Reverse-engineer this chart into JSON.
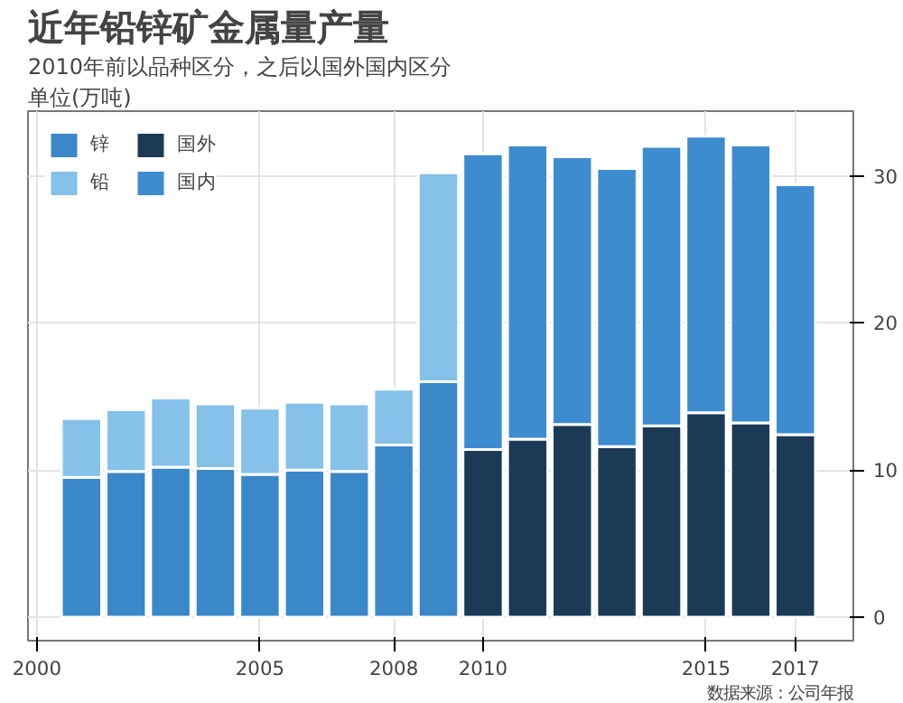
{
  "chart_data": {
    "type": "bar",
    "stacked": true,
    "title": "近年铅锌矿金属量产量",
    "subtitle": "2010年前以品种区分，之后以国外国内区分",
    "ylabel": "单位(万吨)",
    "x": [
      2001,
      2002,
      2003,
      2004,
      2005,
      2006,
      2007,
      2008,
      2009,
      2010,
      2011,
      2012,
      2013,
      2014,
      2015,
      2016,
      2017
    ],
    "series": [
      {
        "name": "锌",
        "color": "#3a88c8",
        "values": [
          9.5,
          9.9,
          10.2,
          10.1,
          9.7,
          10.0,
          9.9,
          11.7,
          16.0,
          null,
          null,
          null,
          null,
          null,
          null,
          null,
          null
        ]
      },
      {
        "name": "铅",
        "color": "#85c1e9",
        "values": [
          4.0,
          4.2,
          4.7,
          4.4,
          4.5,
          4.6,
          4.6,
          3.8,
          14.2,
          null,
          null,
          null,
          null,
          null,
          null,
          null,
          null
        ]
      },
      {
        "name": "国外",
        "color": "#1b3a56",
        "values": [
          null,
          null,
          null,
          null,
          null,
          null,
          null,
          null,
          null,
          11.4,
          12.1,
          13.1,
          11.6,
          13.0,
          13.9,
          13.2,
          12.4
        ]
      },
      {
        "name": "国内",
        "color": "#3d8cd0",
        "values": [
          null,
          null,
          null,
          null,
          null,
          null,
          null,
          null,
          null,
          20.1,
          20.0,
          18.2,
          18.9,
          19.0,
          18.8,
          18.9,
          17.0
        ]
      }
    ],
    "xlim": [
      1999.8,
      2018.3
    ],
    "xticks": [
      2000,
      2005,
      2008,
      2010,
      2015,
      2017
    ],
    "ylim": [
      -1.6,
      34.4
    ],
    "yticks": [
      0,
      10,
      20,
      30
    ],
    "grid": true,
    "legend": "top left",
    "annotations": [
      "数据来源：公司年报"
    ]
  }
}
